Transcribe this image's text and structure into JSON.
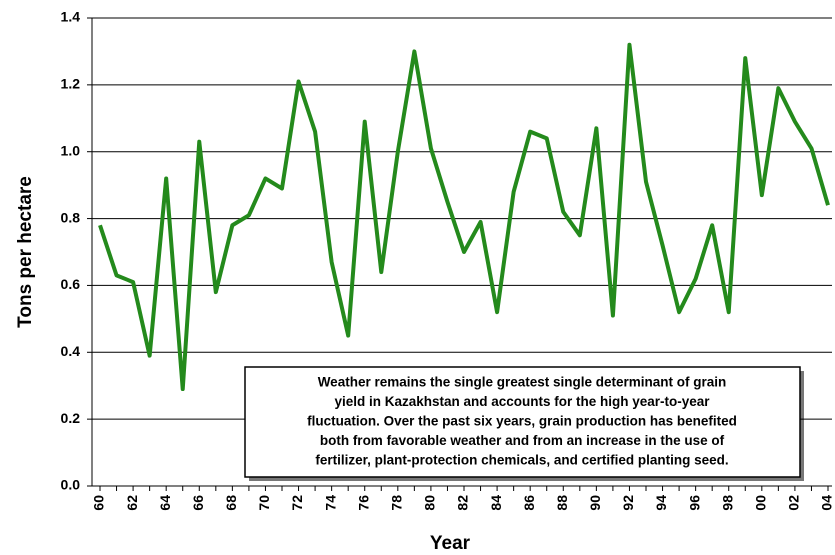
{
  "chart_data": {
    "type": "line",
    "x_label": "Year",
    "y_label": "Tons per hectare",
    "categories": [
      "60",
      null,
      "62",
      null,
      "64",
      null,
      "66",
      null,
      "68",
      null,
      "70",
      null,
      "72",
      null,
      "74",
      null,
      "76",
      null,
      "78",
      null,
      "80",
      null,
      "82",
      null,
      "84",
      null,
      "86",
      null,
      "88",
      null,
      "90",
      null,
      "92",
      null,
      "94",
      null,
      "96",
      null,
      "98",
      null,
      "00",
      null,
      "02",
      null,
      "04"
    ],
    "series": [
      {
        "color": "#248a1c",
        "values": [
          0.78,
          0.63,
          0.61,
          0.39,
          0.92,
          0.29,
          1.03,
          0.58,
          0.78,
          0.81,
          0.92,
          0.89,
          1.21,
          1.06,
          0.67,
          0.45,
          1.09,
          0.64,
          1.0,
          1.3,
          1.01,
          0.85,
          0.7,
          0.79,
          0.52,
          0.88,
          1.06,
          1.04,
          0.82,
          0.75,
          1.07,
          0.51,
          1.32,
          0.91,
          0.72,
          0.52,
          0.62,
          0.78,
          0.52,
          1.28,
          0.87,
          1.19,
          1.09,
          1.01,
          0.84
        ]
      }
    ],
    "ylim": [
      0,
      1.4
    ],
    "yticks": [
      {
        "value": 0,
        "label": "0.0"
      },
      {
        "value": 0.2,
        "label": "0.2"
      },
      {
        "value": 0.4,
        "label": "0.4"
      },
      {
        "value": 0.6,
        "label": "0.6"
      },
      {
        "value": 0.8,
        "label": "0.8"
      },
      {
        "value": 1,
        "label": "1.0"
      },
      {
        "value": 1.2,
        "label": "1.2"
      },
      {
        "value": 1.4,
        "label": "1.4"
      }
    ],
    "grid": true,
    "annotation": [
      "Weather remains the single greatest single determinant of grain",
      "yield in Kazakhstan and accounts for the high year-to-year",
      "fluctuation.  Over the past six years, grain production has benefited",
      "both from favorable weather and from an increase in the use of",
      "fertilizer, plant-protection chemicals, and certified planting seed."
    ]
  }
}
